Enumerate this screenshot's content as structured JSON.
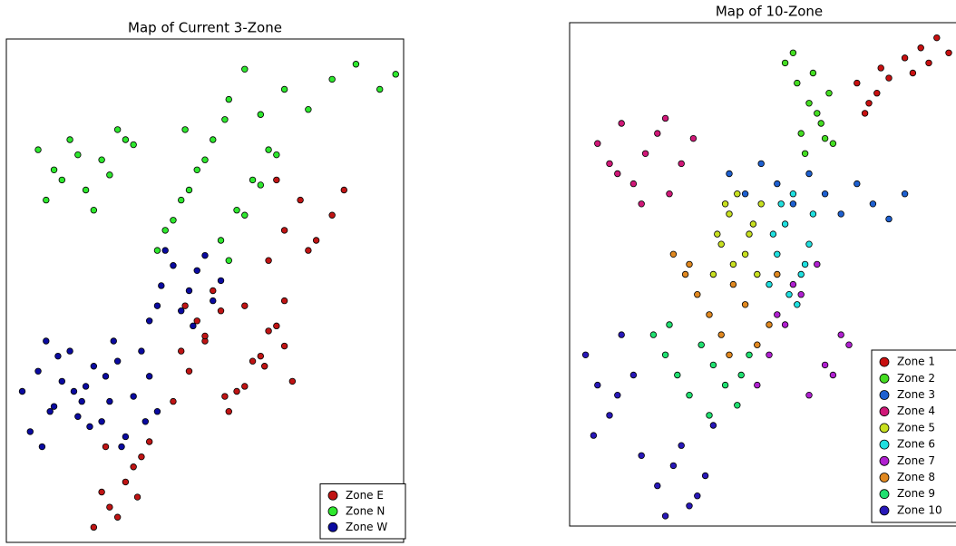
{
  "chart_data": [
    {
      "type": "scatter",
      "title": "Map of Current 3-Zone",
      "xlim": [
        0,
        100
      ],
      "ylim": [
        0,
        100
      ],
      "legend": "lower right",
      "series": [
        {
          "name": "Zone E",
          "color": "#c01414",
          "x": [
            22,
            26,
            30,
            34,
            24,
            28,
            32,
            36,
            25,
            33,
            42,
            46,
            50,
            54,
            58,
            62,
            66,
            70,
            72,
            44,
            48,
            52,
            56,
            60,
            64,
            68,
            45,
            55,
            65,
            50,
            60,
            70,
            66,
            70,
            74,
            78,
            82,
            85,
            68,
            76
          ],
          "values": [
            3,
            7,
            12,
            17,
            10,
            5,
            15,
            20,
            19,
            9,
            28,
            34,
            40,
            46,
            30,
            36,
            42,
            48,
            32,
            38,
            44,
            50,
            26,
            31,
            37,
            43,
            47,
            29,
            35,
            41,
            47,
            39,
            56,
            62,
            68,
            60,
            65,
            70,
            72,
            58
          ]
        },
        {
          "name": "Zone N",
          "color": "#2ee82e",
          "x": [
            8,
            12,
            16,
            20,
            24,
            28,
            32,
            10,
            14,
            18,
            22,
            26,
            30,
            38,
            42,
            46,
            50,
            54,
            58,
            62,
            66,
            40,
            44,
            48,
            52,
            56,
            60,
            64,
            68,
            45,
            55,
            56,
            60,
            64,
            70,
            76,
            82,
            88,
            94,
            98
          ],
          "values": [
            78,
            74,
            80,
            70,
            76,
            82,
            79,
            68,
            72,
            77,
            66,
            73,
            80,
            58,
            64,
            70,
            76,
            60,
            66,
            72,
            78,
            62,
            68,
            74,
            80,
            56,
            65,
            71,
            77,
            82,
            84,
            88,
            94,
            85,
            90,
            86,
            92,
            95,
            90,
            93
          ]
        },
        {
          "name": "Zone W",
          "color": "#0a0aa0",
          "x": [
            4,
            8,
            12,
            16,
            20,
            24,
            28,
            32,
            36,
            6,
            10,
            14,
            18,
            22,
            26,
            30,
            34,
            38,
            9,
            13,
            17,
            21,
            25,
            29,
            11,
            19,
            27,
            35,
            38,
            42,
            46,
            50,
            54,
            36,
            40,
            44,
            48,
            52,
            39,
            47
          ],
          "values": [
            30,
            34,
            27,
            38,
            31,
            24,
            36,
            29,
            33,
            22,
            40,
            32,
            25,
            35,
            28,
            21,
            38,
            26,
            19,
            37,
            30,
            23,
            33,
            19,
            26,
            28,
            40,
            24,
            47,
            55,
            50,
            57,
            52,
            44,
            58,
            46,
            54,
            48,
            51,
            43
          ]
        }
      ]
    },
    {
      "type": "scatter",
      "title": "Map of 10-Zone",
      "xlim": [
        0,
        100
      ],
      "ylim": [
        0,
        100
      ],
      "legend": "lower right",
      "series": [
        {
          "name": "Zone 1",
          "color": "#c81010",
          "x": [
            72,
            75,
            78,
            74,
            80,
            84,
            88,
            92,
            95,
            90,
            86,
            77
          ],
          "values": [
            88,
            84,
            91,
            82,
            89,
            93,
            95,
            97,
            94,
            92,
            90,
            86
          ]
        },
        {
          "name": "Zone 2",
          "color": "#44dd22",
          "x": [
            54,
            57,
            60,
            63,
            66,
            58,
            62,
            65,
            56,
            61,
            64,
            59
          ],
          "values": [
            92,
            88,
            84,
            80,
            76,
            78,
            82,
            86,
            94,
            90,
            77,
            74
          ]
        },
        {
          "name": "Zone 3",
          "color": "#1e60d0",
          "x": [
            40,
            44,
            48,
            52,
            56,
            60,
            64,
            68,
            72,
            76,
            80,
            84
          ],
          "values": [
            70,
            66,
            72,
            68,
            64,
            70,
            66,
            62,
            68,
            64,
            61,
            66
          ]
        },
        {
          "name": "Zone 4",
          "color": "#d01878",
          "x": [
            7,
            10,
            13,
            16,
            19,
            22,
            25,
            28,
            31,
            12,
            18,
            24
          ],
          "values": [
            76,
            72,
            80,
            68,
            74,
            78,
            66,
            72,
            77,
            70,
            64,
            81
          ]
        },
        {
          "name": "Zone 5",
          "color": "#c8e020",
          "x": [
            36,
            38,
            40,
            42,
            44,
            46,
            48,
            37,
            41,
            45,
            39,
            47
          ],
          "values": [
            50,
            56,
            62,
            66,
            54,
            60,
            64,
            58,
            52,
            58,
            64,
            50
          ]
        },
        {
          "name": "Zone 6",
          "color": "#20e0e0",
          "x": [
            50,
            52,
            54,
            56,
            58,
            60,
            61,
            51,
            55,
            59,
            53,
            57
          ],
          "values": [
            48,
            54,
            60,
            66,
            50,
            56,
            62,
            58,
            46,
            52,
            64,
            44
          ]
        },
        {
          "name": "Zone 7",
          "color": "#b020d0",
          "x": [
            47,
            50,
            54,
            58,
            62,
            66,
            70,
            52,
            56,
            60,
            64,
            68
          ],
          "values": [
            28,
            34,
            40,
            46,
            52,
            30,
            36,
            42,
            48,
            26,
            32,
            38
          ]
        },
        {
          "name": "Zone 8",
          "color": "#e08820",
          "x": [
            26,
            29,
            32,
            35,
            38,
            41,
            44,
            47,
            50,
            30,
            40,
            52
          ],
          "values": [
            54,
            50,
            46,
            42,
            38,
            48,
            44,
            36,
            40,
            52,
            34,
            50
          ]
        },
        {
          "name": "Zone 9",
          "color": "#20e070",
          "x": [
            21,
            24,
            27,
            30,
            33,
            36,
            39,
            42,
            45,
            25,
            35,
            43
          ],
          "values": [
            38,
            34,
            30,
            26,
            36,
            32,
            28,
            24,
            34,
            40,
            22,
            30
          ]
        },
        {
          "name": "Zone 10",
          "color": "#2818b8",
          "x": [
            4,
            7,
            10,
            13,
            16,
            6,
            12,
            18,
            22,
            26,
            30,
            34,
            24,
            28,
            32,
            36
          ],
          "values": [
            34,
            28,
            22,
            38,
            30,
            18,
            26,
            14,
            8,
            12,
            4,
            10,
            2,
            16,
            6,
            20
          ]
        }
      ]
    }
  ]
}
